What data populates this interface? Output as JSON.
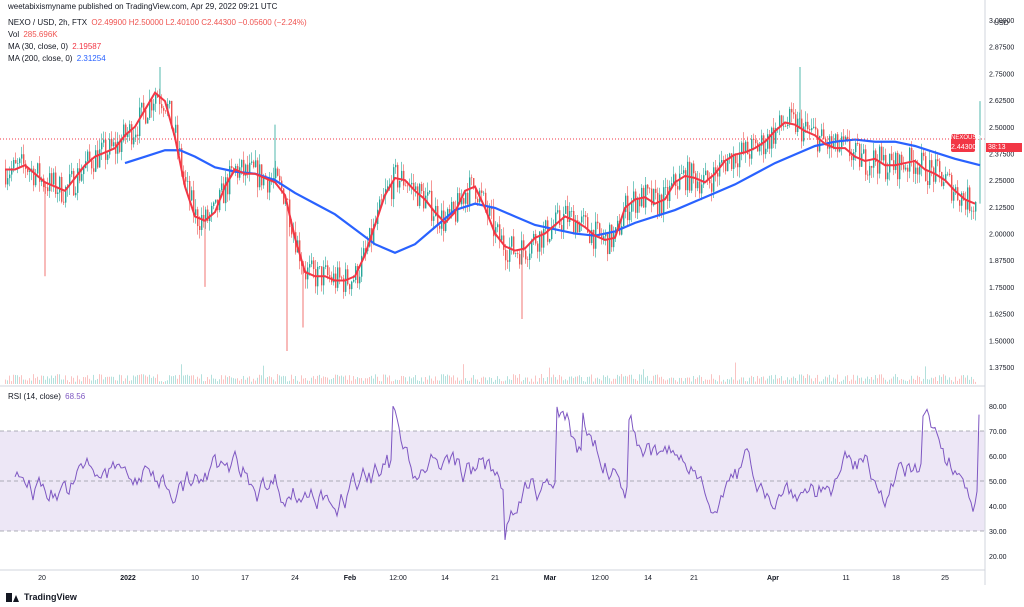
{
  "header": {
    "publisher": "weetabixismyname published on TradingView.com, Apr 29, 2022 09:21 UTC"
  },
  "legend": {
    "symbol": "NEXO / USD, 2h, FTX",
    "ohlc": "O2.49900 H2.50000 L2.40100 C2.44300 −0.05600 (−2.24%)",
    "vol_label": "Vol",
    "vol_value": "285.696K",
    "ma30_label": "MA (30, close, 0)",
    "ma30_value": "2.19587",
    "ma200_label": "MA (200, close, 0)",
    "ma200_value": "2.31254",
    "rsi_label": "RSI (14, close)",
    "rsi_value": "68.56"
  },
  "badges": {
    "price_symbol": "NEXOUSD",
    "price_value": "2.44300",
    "countdown": "38:13"
  },
  "brand": {
    "name": "TradingView"
  },
  "colors": {
    "up": "#26a69a",
    "down": "#ef5350",
    "ma30": "#f23645",
    "ma200": "#2962ff",
    "rsi": "#7e57c2",
    "rsi_band": "#ede7f6"
  },
  "chart_data": [
    {
      "type": "line",
      "title": "NEXO / USD, 2h, FTX",
      "price_axis": {
        "currency": "USD",
        "ticks": [
          "3.00000",
          "2.87500",
          "2.75000",
          "2.62500",
          "2.50000",
          "2.37500",
          "2.25000",
          "2.12500",
          "2.00000",
          "1.87500",
          "1.75000",
          "1.62500",
          "1.50000",
          "1.37500"
        ],
        "range": [
          1.35,
          3.0
        ]
      },
      "time_axis": {
        "ticks": [
          "20",
          "2022",
          "10",
          "17",
          "24",
          "Feb",
          "12:00",
          "14",
          "21",
          "Mar",
          "12:00",
          "14",
          "21",
          "Apr",
          "11",
          "18",
          "25"
        ],
        "bold_ticks": [
          "2022",
          "Feb",
          "Mar",
          "Apr"
        ]
      },
      "series": [
        {
          "name": "MA (30, close, 0)",
          "note": "approx values read from chart",
          "x": [
            0,
            10,
            20,
            30,
            40,
            50,
            60,
            70,
            80,
            90,
            100,
            110,
            120,
            130,
            140,
            150,
            160,
            170,
            180,
            190,
            200,
            210,
            220,
            230,
            240,
            250,
            260,
            270,
            280,
            290,
            300,
            310,
            320,
            330,
            340,
            350,
            360,
            370,
            380,
            390,
            400,
            410,
            420,
            430,
            440,
            450,
            460,
            470,
            480,
            490,
            500,
            510,
            520,
            530,
            540,
            550,
            560,
            570,
            580,
            590,
            600,
            610,
            620,
            630,
            640,
            650,
            660,
            670,
            680,
            690,
            700,
            710,
            720,
            730,
            740,
            750,
            760,
            770,
            780,
            790,
            800,
            810,
            820,
            830,
            840,
            850,
            860,
            870,
            880,
            890,
            900,
            910,
            920,
            930,
            940,
            950,
            960,
            970
          ],
          "values": [
            2.3,
            2.3,
            2.32,
            2.28,
            2.24,
            2.22,
            2.2,
            2.26,
            2.32,
            2.36,
            2.38,
            2.4,
            2.46,
            2.5,
            2.58,
            2.66,
            2.62,
            2.45,
            2.22,
            2.08,
            2.06,
            2.1,
            2.22,
            2.3,
            2.28,
            2.28,
            2.26,
            2.24,
            2.18,
            1.98,
            1.82,
            1.8,
            1.8,
            1.78,
            1.78,
            1.8,
            1.9,
            2.04,
            2.18,
            2.26,
            2.25,
            2.2,
            2.16,
            2.1,
            2.05,
            2.1,
            2.2,
            2.22,
            2.12,
            2.0,
            1.94,
            1.92,
            1.93,
            1.98,
            2.0,
            2.04,
            2.08,
            2.06,
            2.03,
            1.99,
            1.97,
            1.98,
            2.12,
            2.16,
            2.17,
            2.14,
            2.16,
            2.24,
            2.27,
            2.26,
            2.24,
            2.28,
            2.34,
            2.37,
            2.38,
            2.4,
            2.43,
            2.48,
            2.52,
            2.51,
            2.48,
            2.46,
            2.42,
            2.4,
            2.4,
            2.36,
            2.34,
            2.35,
            2.32,
            2.32,
            2.33,
            2.34,
            2.3,
            2.28,
            2.25,
            2.2,
            2.16,
            2.14
          ]
        },
        {
          "name": "MA (200, close, 0)",
          "note": "approx values read from chart",
          "x": [
            120,
            140,
            160,
            175,
            190,
            210,
            230,
            250,
            270,
            290,
            310,
            330,
            350,
            370,
            390,
            410,
            430,
            450,
            470,
            490,
            510,
            530,
            550,
            570,
            590,
            610,
            630,
            650,
            670,
            690,
            710,
            730,
            750,
            770,
            790,
            810,
            830,
            850,
            870,
            890,
            910,
            930,
            950,
            975
          ],
          "values": [
            2.33,
            2.36,
            2.39,
            2.39,
            2.36,
            2.31,
            2.29,
            2.28,
            2.25,
            2.19,
            2.14,
            2.09,
            2.02,
            1.95,
            1.91,
            1.95,
            2.03,
            2.11,
            2.14,
            2.12,
            2.08,
            2.04,
            2.02,
            2.0,
            1.99,
            2.01,
            2.05,
            2.08,
            2.11,
            2.15,
            2.19,
            2.23,
            2.28,
            2.33,
            2.37,
            2.41,
            2.43,
            2.44,
            2.43,
            2.43,
            2.41,
            2.38,
            2.35,
            2.32
          ]
        }
      ]
    },
    {
      "type": "line",
      "title": "RSI (14, close)",
      "ylim": [
        15,
        85
      ],
      "ticks": [
        "80.00",
        "70.00",
        "60.00",
        "50.00",
        "40.00",
        "30.00",
        "20.00"
      ],
      "bands": {
        "upper": 70,
        "middle": 50,
        "lower": 30
      },
      "series": [
        {
          "name": "RSI (14, close)",
          "last_value": 68.56
        }
      ]
    }
  ]
}
